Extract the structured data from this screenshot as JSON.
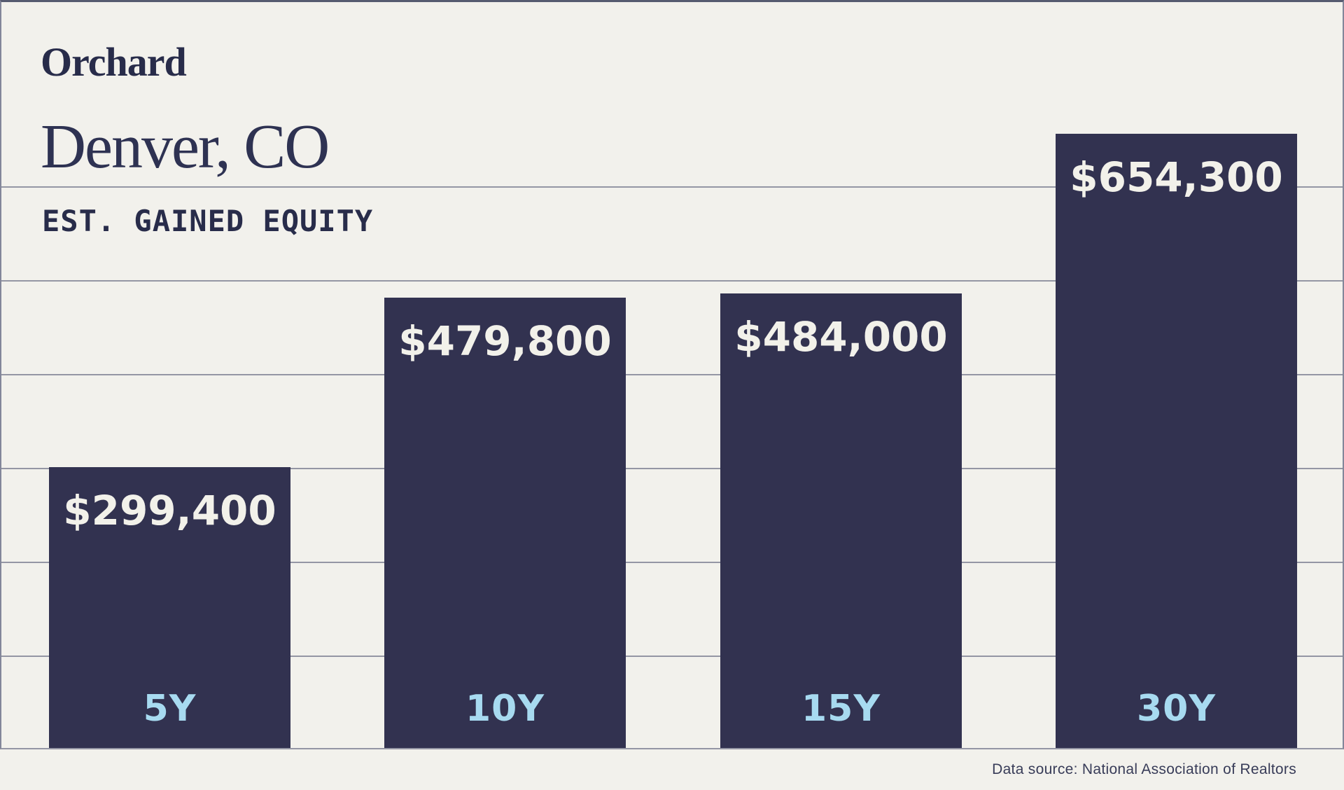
{
  "brand": {
    "name": "Orchard"
  },
  "chart_data": {
    "type": "bar",
    "title": "Denver, CO",
    "subtitle": "EST. GAINED EQUITY",
    "source_note": "Data source: National Association of Realtors",
    "categories": [
      "5Y",
      "10Y",
      "15Y",
      "30Y"
    ],
    "values": [
      299400,
      479800,
      484000,
      654300
    ],
    "bars": [
      {
        "period": "5Y",
        "value": 299400,
        "value_label": "$299,400"
      },
      {
        "period": "10Y",
        "value": 479800,
        "value_label": "$479,800"
      },
      {
        "period": "15Y",
        "value": 484000,
        "value_label": "$484,000"
      },
      {
        "period": "30Y",
        "value": 654300,
        "value_label": "$654,300"
      }
    ],
    "xlabel": "",
    "ylabel": "",
    "ylim": [
      0,
      700000
    ],
    "gridline_step": 100000,
    "max_gridline_value": 600000,
    "grid_on": true,
    "legend_position": "none"
  },
  "colors": {
    "background": "#f2f1ec",
    "bar_fill": "#323250",
    "value_label_text": "#f2f1ea",
    "period_label_text": "#a7daf0",
    "heading_text": "#282c4a",
    "title_text": "#2e3252",
    "gridline": "#9496a4",
    "top_border": "#565b70",
    "side_border": "#83879a",
    "source_text": "#383c58"
  }
}
